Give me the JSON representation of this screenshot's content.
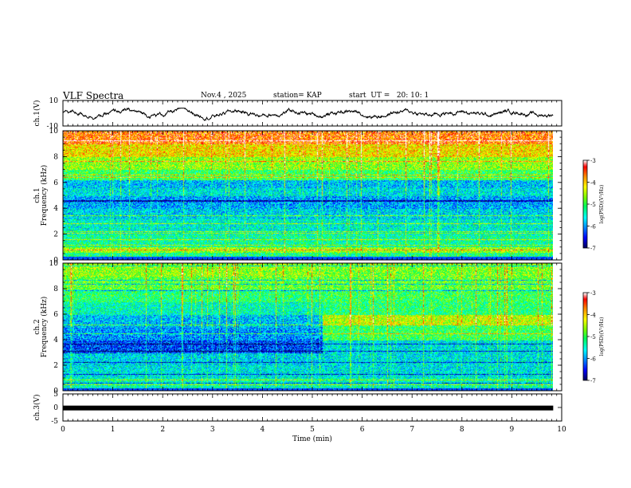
{
  "header": {
    "title": "VLF Spectra",
    "date": "Nov.4 , 2025",
    "station": "station= KAP",
    "start": "start  UT =   20: 10: 1"
  },
  "colors": {
    "waveform": "#000000",
    "spectral_scale": [
      "#000060",
      "#0000ff",
      "#00a0ff",
      "#00ffff",
      "#00ff40",
      "#80ff00",
      "#ffff00",
      "#ff8000",
      "#ff0000",
      "#ffffff"
    ]
  },
  "chart_data": [
    {
      "type": "line",
      "name": "ch1-waveform",
      "ylabel": "ch.1(V)",
      "ylim": [
        -10,
        10
      ],
      "yticks": [
        "10",
        "-10"
      ],
      "xlim": [
        0,
        10
      ],
      "description_values": {
        "mean": 0,
        "amplitude_range": [
          -4,
          4
        ]
      }
    },
    {
      "type": "heatmap",
      "name": "ch1-spectrogram",
      "ylabel_top": "ch.1",
      "ylabel": "Frequency  (kHz)",
      "ylim": [
        0,
        10
      ],
      "yticks": [
        "0",
        "2",
        "4",
        "6",
        "8",
        "10"
      ],
      "xlim": [
        0,
        9.83
      ],
      "bands": [
        {
          "from": 0.0,
          "to": 0.6,
          "level": -5.2
        },
        {
          "from": 0.6,
          "to": 1.0,
          "level": -4.6
        },
        {
          "from": 1.0,
          "to": 2.0,
          "level": -5.3
        },
        {
          "from": 2.0,
          "to": 3.2,
          "level": -5.5
        },
        {
          "from": 3.2,
          "to": 4.0,
          "level": -5.7
        },
        {
          "from": 4.0,
          "to": 5.0,
          "level": -5.9
        },
        {
          "from": 5.0,
          "to": 5.6,
          "level": -5.6
        },
        {
          "from": 5.6,
          "to": 6.2,
          "level": -5.8
        },
        {
          "from": 6.2,
          "to": 7.0,
          "level": -5.0
        },
        {
          "from": 7.0,
          "to": 8.0,
          "level": -4.6
        },
        {
          "from": 8.0,
          "to": 9.0,
          "level": -4.1
        },
        {
          "from": 9.0,
          "to": 10.0,
          "level": -3.6
        }
      ],
      "colorbar": {
        "label": "log(PSD)(V²/Hz)",
        "ticks": [
          "-3",
          "-4",
          "-5",
          "-6",
          "-7"
        ],
        "range": [
          -7,
          -3
        ]
      }
    },
    {
      "type": "heatmap",
      "name": "ch2-spectrogram",
      "ylabel_top": "ch.2",
      "ylabel": "Frequency  (kHz)",
      "ylim": [
        0,
        10
      ],
      "yticks": [
        "0",
        "2",
        "4",
        "6",
        "8",
        "10"
      ],
      "xlim": [
        0,
        9.83
      ],
      "change_time_min": 5.2,
      "bands_before": [
        {
          "from": 0.0,
          "to": 1.0,
          "level": -5.4
        },
        {
          "from": 1.0,
          "to": 2.0,
          "level": -5.6
        },
        {
          "from": 2.0,
          "to": 3.0,
          "level": -5.7
        },
        {
          "from": 3.0,
          "to": 4.0,
          "level": -6.3
        },
        {
          "from": 4.0,
          "to": 5.0,
          "level": -6.0
        },
        {
          "from": 5.0,
          "to": 6.0,
          "level": -5.8
        },
        {
          "from": 6.0,
          "to": 7.0,
          "level": -5.4
        },
        {
          "from": 7.0,
          "to": 8.0,
          "level": -5.1
        },
        {
          "from": 8.0,
          "to": 9.0,
          "level": -4.8
        },
        {
          "from": 9.0,
          "to": 10.0,
          "level": -4.6
        }
      ],
      "bands_after": [
        {
          "from": 0.0,
          "to": 1.0,
          "level": -5.4
        },
        {
          "from": 1.0,
          "to": 2.0,
          "level": -5.6
        },
        {
          "from": 2.0,
          "to": 3.0,
          "level": -5.6
        },
        {
          "from": 3.0,
          "to": 4.0,
          "level": -5.6
        },
        {
          "from": 4.0,
          "to": 5.2,
          "level": -5.0
        },
        {
          "from": 5.2,
          "to": 6.0,
          "level": -4.4
        },
        {
          "from": 6.0,
          "to": 7.0,
          "level": -5.1
        },
        {
          "from": 7.0,
          "to": 8.0,
          "level": -5.0
        },
        {
          "from": 8.0,
          "to": 9.0,
          "level": -4.8
        },
        {
          "from": 9.0,
          "to": 10.0,
          "level": -4.7
        }
      ],
      "colorbar": {
        "label": "log(PSD)(V²/Hz)",
        "ticks": [
          "-3",
          "-4",
          "-5",
          "-6",
          "-7"
        ],
        "range": [
          -7,
          -3
        ]
      }
    },
    {
      "type": "line",
      "name": "ch3-waveform",
      "ylabel": "ch.3(V)",
      "ylim": [
        -5,
        5
      ],
      "yticks": [
        "5",
        "0",
        "-5"
      ],
      "constant_value": -0.2,
      "xlim": [
        0,
        9.83
      ]
    }
  ],
  "xaxis": {
    "label": "Time  (min)",
    "ticks": [
      "0",
      "1",
      "2",
      "3",
      "4",
      "5",
      "6",
      "7",
      "8",
      "9",
      "10"
    ],
    "range": [
      0,
      10
    ]
  }
}
